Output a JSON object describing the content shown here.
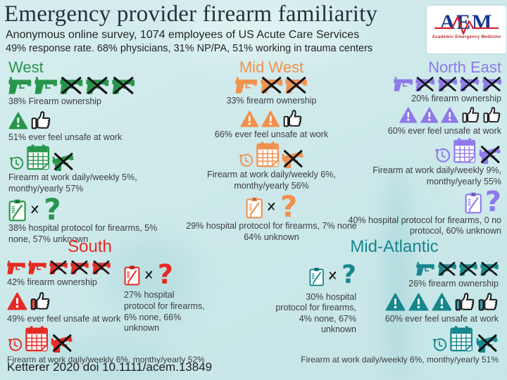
{
  "header": {
    "title": "Emergency provider firearm familiarity",
    "subtitle_line1": "Anonymous online survey,  1074 employees of US Acute Care Services",
    "subtitle_line2": "49% response rate. 68% physicians, 31% NP/PA, 51% working in trauma centers",
    "logo": {
      "acronym": "AEM",
      "caption": "Academic Emergency Medicine"
    }
  },
  "colors": {
    "background": "#cde9ea",
    "title_text": "#22333f",
    "body_text": "#3c3c3c",
    "logo_blue": "#17368f",
    "logo_red": "#c1272d"
  },
  "icons": {
    "question_mark": "?"
  },
  "regions": {
    "west": {
      "name": "West",
      "accent": "#27964b",
      "ownership": {
        "guns": 2,
        "guns_crossed": 3,
        "label": "38% Firearm ownership"
      },
      "unsafe": {
        "triangles": 1,
        "thumbs": 1,
        "label": "51% ever feel unsafe at work"
      },
      "at_work": {
        "lines": [
          "Firearm at work daily/weekly 5%,",
          "monthy/yearly 57%"
        ]
      },
      "protocol": {
        "lines": [
          "38% hospital protocol for firearms, 5%",
          "none, 57% unknown"
        ]
      }
    },
    "midwest": {
      "name": "Mid West",
      "accent": "#f0914e",
      "ownership": {
        "guns": 1,
        "guns_crossed": 2,
        "label": "33% firearm ownership"
      },
      "unsafe": {
        "triangles": 2,
        "thumbs": 1,
        "label": "66% ever feel unsafe at work"
      },
      "at_work": {
        "lines": [
          "Firearm at work daily/weekly 6%,",
          "monthy/yearly 56%"
        ]
      },
      "protocol": {
        "lines": [
          "29% hospital protocol for firearms, 7% none",
          "64% unknown"
        ]
      }
    },
    "northeast": {
      "name": "North East",
      "accent": "#8d7ae9",
      "ownership": {
        "guns": 1,
        "guns_crossed": 4,
        "label": "20% firearm ownership"
      },
      "unsafe": {
        "triangles": 3,
        "thumbs": 2,
        "label": "60% ever feel unsafe at work"
      },
      "at_work": {
        "lines": [
          "Firearm at work daily/weekly 9%,",
          "monthy/yearly 55%"
        ]
      },
      "protocol": {
        "lines": [
          "40% hospital protocol for firearms, 0 no",
          "protocol, 60% unknown"
        ]
      }
    },
    "south": {
      "name": "South",
      "accent": "#e52a24",
      "ownership": {
        "guns": 2,
        "guns_crossed": 3,
        "label": "42% firearm ownership"
      },
      "unsafe": {
        "triangles": 1,
        "thumbs": 1,
        "label": "49% ever feel unsafe at work"
      },
      "at_work": {
        "lines": [
          "Firearm at work daily/weekly 6%, monthy/yearly 52%"
        ]
      },
      "protocol": {
        "lines": [
          "27% hospital",
          "protocol for firearms,",
          "6% none, 66%",
          "unknown"
        ]
      }
    },
    "midatlantic": {
      "name": "Mid-Atlantic",
      "accent": "#17868d",
      "ownership": {
        "guns": 1,
        "guns_crossed": 3,
        "label": "26% firearm ownership"
      },
      "unsafe": {
        "triangles": 3,
        "thumbs": 2,
        "label": "60% ever feel unsafe at work"
      },
      "at_work": {
        "lines": [
          "Firearm at work daily/weekly 6%, monthy/yearly 51%"
        ]
      },
      "protocol": {
        "lines": [
          "30% hospital",
          "protocol for firearms,",
          "4% none, 67%",
          "unknown"
        ]
      }
    }
  },
  "footer": {
    "citation": "Ketterer 2020 doi 10.1111/acem.13849"
  }
}
